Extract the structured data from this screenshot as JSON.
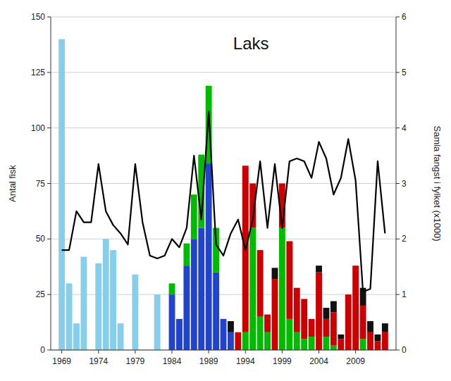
{
  "chart_data": {
    "type": "bar",
    "stacked": true,
    "title": "Laks",
    "ylabel": "Antal fisk",
    "y2label": "Samla fangst i fylket (x1000)",
    "x": [
      1969,
      1970,
      1971,
      1972,
      1973,
      1974,
      1975,
      1976,
      1977,
      1978,
      1979,
      1980,
      1981,
      1982,
      1983,
      1984,
      1985,
      1986,
      1987,
      1988,
      1989,
      1990,
      1991,
      1992,
      1993,
      1994,
      1995,
      1996,
      1997,
      1998,
      1999,
      2000,
      2001,
      2002,
      2003,
      2004,
      2005,
      2006,
      2007,
      2008,
      2009,
      2010,
      2011,
      2012,
      2013
    ],
    "xlim": [
      1967.5,
      2014.5
    ],
    "xticks": [
      1969,
      1974,
      1979,
      1984,
      1989,
      1994,
      1999,
      2004,
      2009
    ],
    "ylim": [
      0,
      150
    ],
    "yticks": [
      0,
      25,
      50,
      75,
      100,
      125,
      150
    ],
    "y2lim": [
      0,
      6
    ],
    "y2ticks": [
      0,
      1,
      2,
      3,
      4,
      5,
      6
    ],
    "grid": true,
    "series": [
      {
        "type": "bar",
        "color": "#87CEEB",
        "values": [
          140,
          30,
          12,
          42,
          0,
          39,
          50,
          45,
          12,
          0,
          34,
          0,
          0,
          25,
          0,
          0,
          0,
          0,
          0,
          0,
          0,
          0,
          0,
          0,
          0,
          0,
          0,
          0,
          0,
          0,
          0,
          0,
          0,
          0,
          0,
          0,
          0,
          0,
          0,
          0,
          0,
          0,
          0,
          0,
          0
        ]
      },
      {
        "type": "bar",
        "color": "#2244CC",
        "values": [
          0,
          0,
          0,
          0,
          0,
          0,
          0,
          0,
          0,
          0,
          0,
          0,
          0,
          0,
          0,
          25,
          14,
          38,
          50,
          55,
          84,
          35,
          14,
          8,
          0,
          0,
          0,
          0,
          0,
          0,
          0,
          0,
          0,
          0,
          0,
          0,
          0,
          0,
          0,
          0,
          0,
          0,
          0,
          0,
          0
        ]
      },
      {
        "type": "bar",
        "color": "#00BB00",
        "values": [
          0,
          0,
          0,
          0,
          0,
          0,
          0,
          0,
          0,
          0,
          0,
          0,
          0,
          0,
          0,
          5,
          0,
          10,
          20,
          33,
          35,
          20,
          0,
          0,
          0,
          8,
          55,
          15,
          8,
          0,
          55,
          14,
          8,
          5,
          6,
          0,
          6,
          2,
          0,
          0,
          0,
          5,
          0,
          0,
          0
        ]
      },
      {
        "type": "bar",
        "color": "#CC0000",
        "values": [
          0,
          0,
          0,
          0,
          0,
          0,
          0,
          0,
          0,
          0,
          0,
          0,
          0,
          0,
          0,
          0,
          0,
          0,
          0,
          0,
          0,
          0,
          0,
          0,
          8,
          75,
          20,
          30,
          8,
          32,
          20,
          35,
          20,
          18,
          8,
          35,
          8,
          15,
          5,
          25,
          38,
          15,
          8,
          4,
          8
        ]
      },
      {
        "type": "bar",
        "color": "#111111",
        "values": [
          0,
          0,
          0,
          0,
          0,
          0,
          0,
          0,
          0,
          0,
          0,
          0,
          0,
          0,
          0,
          0,
          0,
          0,
          0,
          0,
          0,
          0,
          0,
          5,
          0,
          0,
          0,
          0,
          0,
          5,
          0,
          0,
          0,
          0,
          0,
          3,
          5,
          5,
          2,
          0,
          0,
          8,
          5,
          3,
          4
        ]
      },
      {
        "type": "line",
        "axis": "y2",
        "color": "#000000",
        "values": [
          1.8,
          1.8,
          2.5,
          2.3,
          2.3,
          3.35,
          2.5,
          2.25,
          2.1,
          1.9,
          3.35,
          2.3,
          1.7,
          1.65,
          1.7,
          2.0,
          1.85,
          2.2,
          3.5,
          2.35,
          4.3,
          1.9,
          1.7,
          2.1,
          2.35,
          1.8,
          2.35,
          3.4,
          2.2,
          3.35,
          2.2,
          3.4,
          3.45,
          3.4,
          3.1,
          3.75,
          3.45,
          2.8,
          3.1,
          3.8,
          3.05,
          1.05,
          1.1,
          3.4,
          2.1
        ]
      }
    ]
  }
}
